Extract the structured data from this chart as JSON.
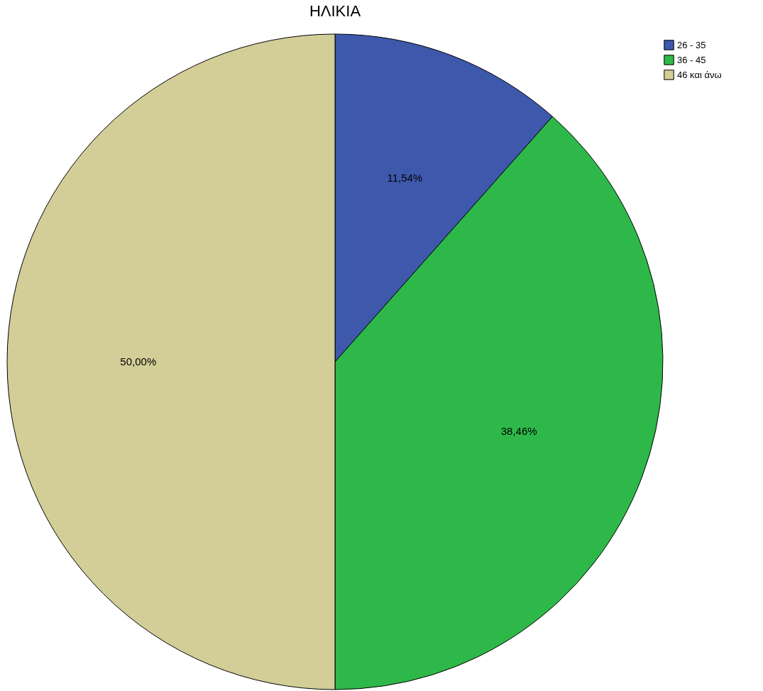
{
  "chart_data": {
    "type": "pie",
    "title": "ΗΛΙΚΙΑ",
    "categories": [
      "26 - 35",
      "36 - 45",
      "46 και άνω"
    ],
    "values": [
      11.54,
      38.46,
      50.0
    ],
    "colors": [
      "#3e58ac",
      "#2eb84a",
      "#d3ce97"
    ],
    "value_labels": [
      "11,54%",
      "38,46%",
      "50,00%"
    ],
    "legend": "top right"
  }
}
